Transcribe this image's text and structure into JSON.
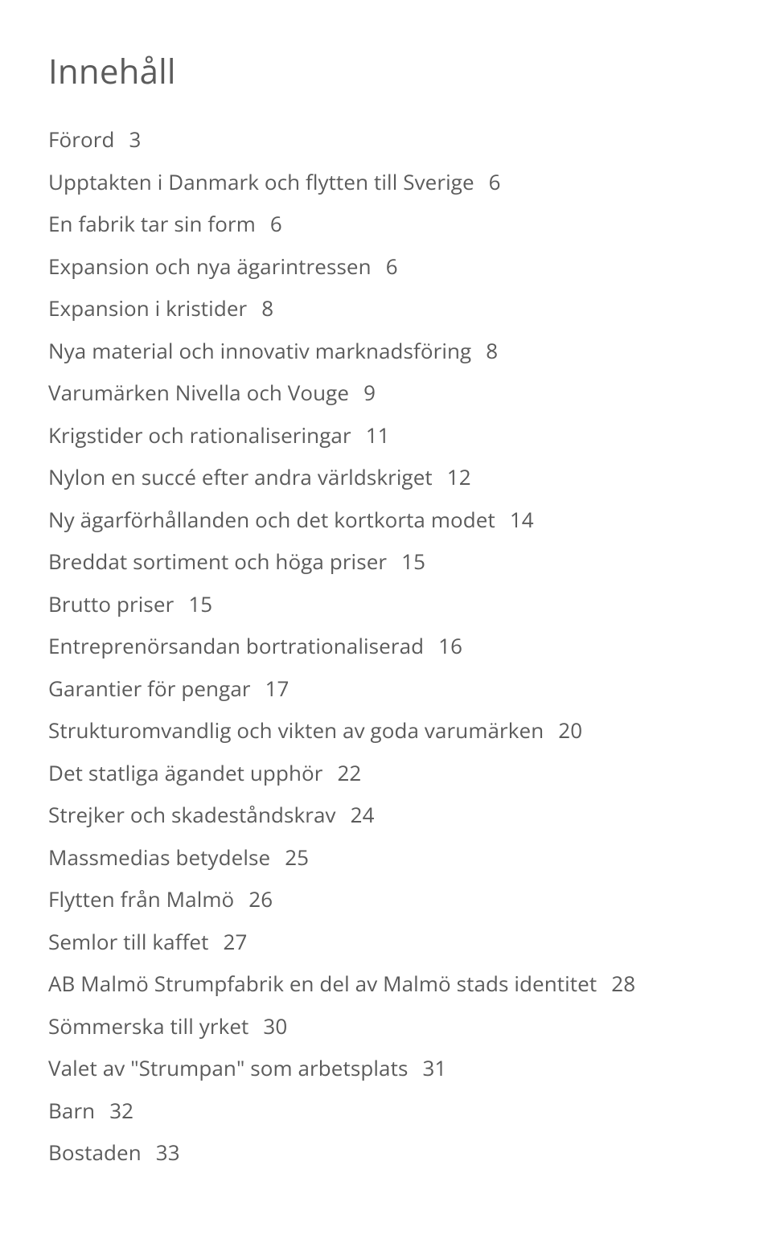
{
  "heading": "Innehåll",
  "text_color": "#5b5b5b",
  "background_color": "#ffffff",
  "heading_fontsize": 42,
  "line_fontsize": 26,
  "entries": [
    {
      "title": "Förord",
      "page": "3"
    },
    {
      "title": "Upptakten i Danmark och flytten till Sverige",
      "tail": "6"
    },
    {
      "title": "En fabrik tar sin form",
      "page": "6"
    },
    {
      "title": "Expansion och nya ägarintressen",
      "tail": "6"
    },
    {
      "title": "Expansion i kristider",
      "page": "8"
    },
    {
      "title": "Nya material och innovativ marknadsföring",
      "tail": "8"
    },
    {
      "title": "Varumärken Nivella och Vouge",
      "page": "9"
    },
    {
      "title": "Krigstider och rationaliseringar",
      "page": "11"
    },
    {
      "title": "Nylon en succé efter andra världskriget",
      "tail": "12"
    },
    {
      "title": "Ny ägarförhållanden och det kortkorta modet",
      "page": "14"
    },
    {
      "title": "Breddat sortiment och höga priser",
      "page": "15"
    },
    {
      "title": "Brutto priser",
      "page": "15"
    },
    {
      "title": "Entreprenörsandan bortrationaliserad",
      "page": "16"
    },
    {
      "title": "Garantier för pengar",
      "page": "17"
    },
    {
      "title": "Strukturomvandlig och vikten av goda varumärken",
      "tail": "20"
    },
    {
      "title": "Det statliga ägandet upphör",
      "page": "22"
    },
    {
      "title": "Strejker och skadeståndskrav",
      "page": "24"
    },
    {
      "title": "Massmedias betydelse",
      "page": "25"
    },
    {
      "title": "Flytten från Malmö",
      "page": "26"
    },
    {
      "title": "Semlor till kaffet",
      "page": "27"
    },
    {
      "title": "AB Malmö Strumpfabrik en del av Malmö stads identitet",
      "tail": "28"
    },
    {
      "title": "Sömmerska till yrket",
      "page": "30"
    },
    {
      "title": "Valet av \"Strumpan\" som arbetsplats",
      "page": "31"
    },
    {
      "title": "Barn",
      "page": "32"
    },
    {
      "title": "Bostaden",
      "page": "33"
    }
  ]
}
